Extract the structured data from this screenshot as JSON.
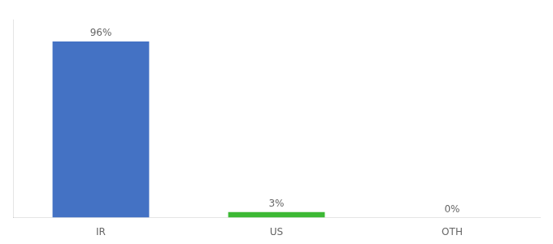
{
  "chart_data": {
    "type": "bar",
    "categories": [
      "IR",
      "US",
      "OTH"
    ],
    "values": [
      96,
      3,
      0
    ],
    "value_labels": [
      "96%",
      "3%",
      "0%"
    ],
    "colors": [
      "#4472c4",
      "#3cb934",
      "#4472c4"
    ],
    "ylim": [
      0,
      108
    ],
    "grid": false,
    "data_labels": true,
    "tick_labels": "x"
  }
}
